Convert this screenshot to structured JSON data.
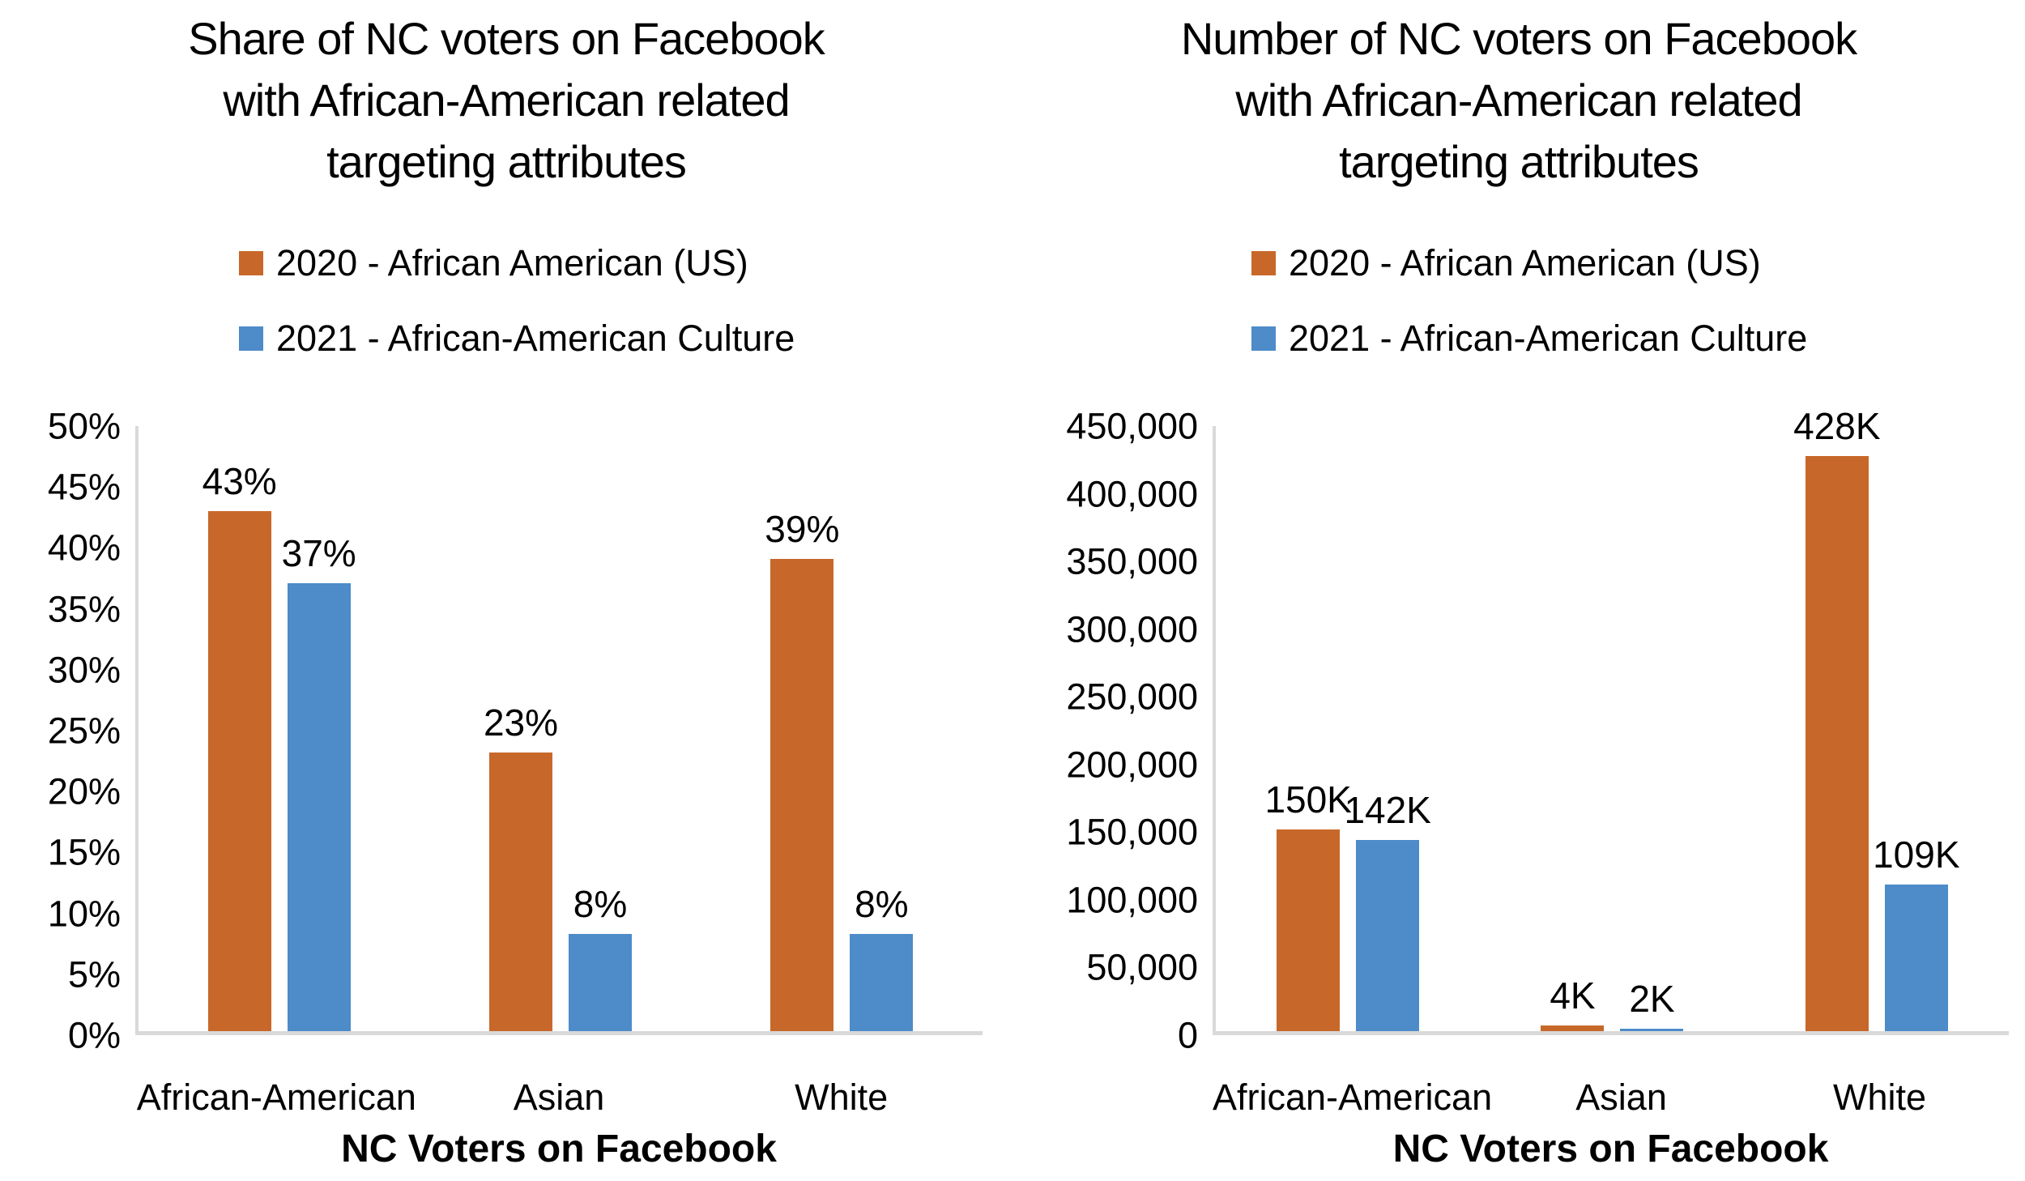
{
  "figure": {
    "background": "#FFFFFF",
    "text_color": "#000000",
    "axis_line_color": "#D9D9D9"
  },
  "chart_data": [
    {
      "type": "bar",
      "title": "Share of NC voters on Facebook with African-American related targeting attributes",
      "title_lines": [
        "Share of NC voters on Facebook",
        "with African-American related",
        "targeting attributes"
      ],
      "categories": [
        "African-American",
        "Asian",
        "White"
      ],
      "series": [
        {
          "name": "2020 - African American (US)",
          "color": "#C7682A",
          "values": [
            43,
            23,
            39
          ],
          "labels": [
            "43%",
            "23%",
            "39%"
          ]
        },
        {
          "name": "2021 - African-American Culture",
          "color": "#4D8BC9",
          "values": [
            37,
            8,
            8
          ],
          "labels": [
            "37%",
            "8%",
            "8%"
          ]
        }
      ],
      "xlabel": "NC Voters on Facebook",
      "ylabel": "",
      "ylim": [
        0,
        50
      ],
      "y_ticks": [
        "0%",
        "5%",
        "10%",
        "15%",
        "20%",
        "25%",
        "30%",
        "35%",
        "40%",
        "45%",
        "50%"
      ],
      "grid": false,
      "legend_position": "top"
    },
    {
      "type": "bar",
      "title": "Number of NC voters on Facebook with African-American related targeting attributes",
      "title_lines": [
        "Number of NC voters on Facebook",
        "with African-American related",
        "targeting attributes"
      ],
      "categories": [
        "African-American",
        "Asian",
        "White"
      ],
      "series": [
        {
          "name": "2020 - African American (US)",
          "color": "#C7682A",
          "values": [
            150000,
            4000,
            428000
          ],
          "labels": [
            "150K",
            "4K",
            "428K"
          ]
        },
        {
          "name": "2021 - African-American Culture",
          "color": "#4D8BC9",
          "values": [
            142000,
            2000,
            109000
          ],
          "labels": [
            "142K",
            "2K",
            "109K"
          ]
        }
      ],
      "xlabel": "NC Voters on Facebook",
      "ylabel": "",
      "ylim": [
        0,
        450000
      ],
      "y_ticks": [
        "0",
        "50,000",
        "100,000",
        "150,000",
        "200,000",
        "250,000",
        "300,000",
        "350,000",
        "400,000",
        "450,000"
      ],
      "grid": false,
      "legend_position": "top"
    }
  ]
}
